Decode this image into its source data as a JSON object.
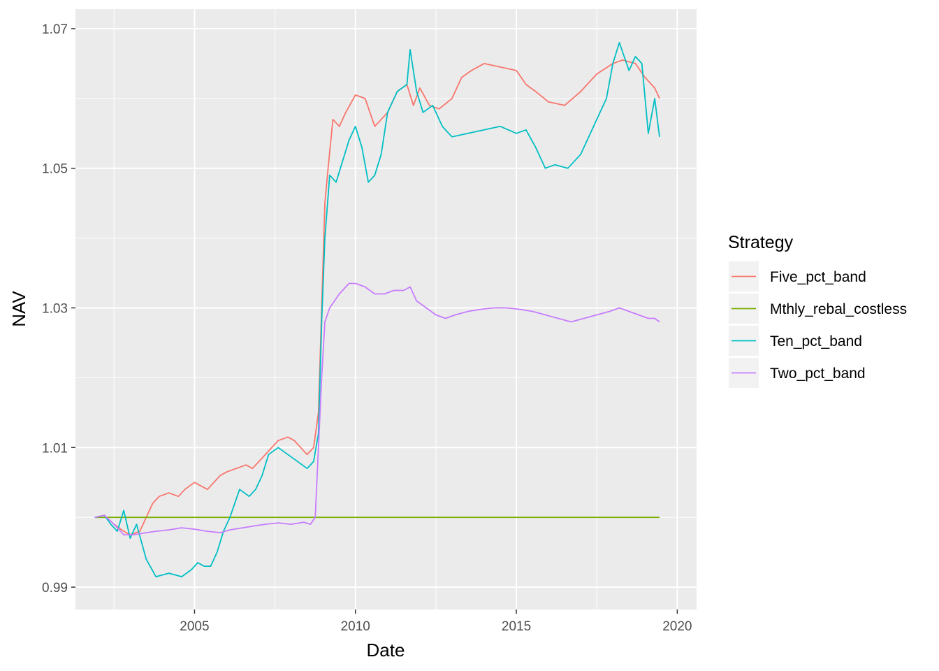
{
  "chart_data": {
    "type": "line",
    "title": "",
    "xlabel": "Date",
    "ylabel": "NAV",
    "xlim": [
      2001.3,
      2020.6
    ],
    "ylim": [
      0.9868,
      1.0728
    ],
    "x_ticks": [
      2005,
      2010,
      2015,
      2020
    ],
    "x_tick_labels": [
      "2005",
      "2010",
      "2015",
      "2020"
    ],
    "y_ticks": [
      0.99,
      1.01,
      1.03,
      1.05,
      1.07
    ],
    "y_tick_labels": [
      "0.99",
      "1.01",
      "1.03",
      "1.05",
      "1.07"
    ],
    "grid": true,
    "legend": {
      "title": "Strategy",
      "placement": "right"
    },
    "series": [
      {
        "name": "Five_pct_band",
        "color": "#F8766D",
        "x": [
          2001.9,
          2002.2,
          2002.5,
          2002.8,
          2003.0,
          2003.3,
          2003.5,
          2003.7,
          2003.9,
          2004.2,
          2004.5,
          2004.7,
          2005.0,
          2005.2,
          2005.4,
          2005.6,
          2005.8,
          2006.0,
          2006.3,
          2006.6,
          2006.8,
          2007.0,
          2007.3,
          2007.6,
          2007.9,
          2008.1,
          2008.3,
          2008.5,
          2008.7,
          2008.85,
          2008.95,
          2009.05,
          2009.15,
          2009.3,
          2009.5,
          2009.7,
          2010.0,
          2010.3,
          2010.6,
          2011.0,
          2011.3,
          2011.6,
          2011.8,
          2012.0,
          2012.3,
          2012.6,
          2013.0,
          2013.3,
          2013.6,
          2014.0,
          2014.5,
          2015.0,
          2015.3,
          2015.6,
          2016.0,
          2016.5,
          2017.0,
          2017.5,
          2018.0,
          2018.3,
          2018.7,
          2019.0,
          2019.3,
          2019.45
        ],
        "values": [
          1.0,
          1.0003,
          0.999,
          0.998,
          0.9975,
          0.998,
          1.0,
          1.002,
          1.003,
          1.0035,
          1.003,
          1.004,
          1.005,
          1.0045,
          1.004,
          1.005,
          1.006,
          1.0065,
          1.007,
          1.0075,
          1.007,
          1.008,
          1.0095,
          1.011,
          1.0115,
          1.011,
          1.01,
          1.009,
          1.01,
          1.015,
          1.03,
          1.045,
          1.05,
          1.057,
          1.056,
          1.058,
          1.0605,
          1.06,
          1.056,
          1.058,
          1.061,
          1.062,
          1.059,
          1.0615,
          1.059,
          1.0585,
          1.06,
          1.063,
          1.064,
          1.065,
          1.0645,
          1.064,
          1.062,
          1.061,
          1.0595,
          1.059,
          1.061,
          1.0635,
          1.065,
          1.0655,
          1.065,
          1.063,
          1.0615,
          1.06
        ]
      },
      {
        "name": "Mthly_rebal_costless",
        "color": "#7CAE00",
        "x": [
          2001.9,
          2019.45
        ],
        "values": [
          1.0,
          1.0
        ]
      },
      {
        "name": "Ten_pct_band",
        "color": "#00BFC4",
        "x": [
          2001.9,
          2002.2,
          2002.4,
          2002.6,
          2002.8,
          2003.0,
          2003.2,
          2003.5,
          2003.8,
          2004.2,
          2004.6,
          2004.9,
          2005.1,
          2005.3,
          2005.5,
          2005.7,
          2005.9,
          2006.1,
          2006.4,
          2006.7,
          2006.9,
          2007.1,
          2007.3,
          2007.6,
          2007.9,
          2008.2,
          2008.5,
          2008.7,
          2008.85,
          2008.95,
          2009.05,
          2009.2,
          2009.4,
          2009.6,
          2009.8,
          2010.0,
          2010.2,
          2010.4,
          2010.6,
          2010.8,
          2011.0,
          2011.3,
          2011.6,
          2011.7,
          2011.9,
          2012.1,
          2012.4,
          2012.7,
          2013.0,
          2013.5,
          2014.0,
          2014.5,
          2015.0,
          2015.3,
          2015.6,
          2015.9,
          2016.2,
          2016.6,
          2017.0,
          2017.4,
          2017.8,
          2018.0,
          2018.2,
          2018.5,
          2018.7,
          2018.9,
          2019.1,
          2019.3,
          2019.45
        ],
        "values": [
          1.0,
          1.0003,
          0.999,
          0.998,
          1.001,
          0.997,
          0.999,
          0.994,
          0.9915,
          0.992,
          0.9915,
          0.9925,
          0.9935,
          0.993,
          0.993,
          0.995,
          0.998,
          1.0,
          1.004,
          1.003,
          1.004,
          1.006,
          1.009,
          1.01,
          1.009,
          1.008,
          1.007,
          1.008,
          1.012,
          1.028,
          1.04,
          1.049,
          1.048,
          1.051,
          1.054,
          1.056,
          1.053,
          1.048,
          1.049,
          1.052,
          1.058,
          1.061,
          1.062,
          1.067,
          1.061,
          1.058,
          1.059,
          1.056,
          1.0545,
          1.055,
          1.0555,
          1.056,
          1.055,
          1.0555,
          1.053,
          1.05,
          1.0505,
          1.05,
          1.052,
          1.056,
          1.06,
          1.065,
          1.068,
          1.064,
          1.066,
          1.065,
          1.055,
          1.06,
          1.0545
        ]
      },
      {
        "name": "Two_pct_band",
        "color": "#C77CFF",
        "x": [
          2001.9,
          2002.2,
          2002.5,
          2002.8,
          2003.1,
          2003.5,
          2003.8,
          2004.2,
          2004.6,
          2005.0,
          2005.4,
          2005.8,
          2006.1,
          2006.5,
          2006.9,
          2007.2,
          2007.6,
          2008.0,
          2008.4,
          2008.6,
          2008.75,
          2008.85,
          2008.95,
          2009.05,
          2009.2,
          2009.5,
          2009.8,
          2010.0,
          2010.3,
          2010.6,
          2010.9,
          2011.2,
          2011.5,
          2011.7,
          2011.9,
          2012.2,
          2012.5,
          2012.8,
          2013.1,
          2013.5,
          2013.9,
          2014.3,
          2014.7,
          2015.1,
          2015.5,
          2015.9,
          2016.3,
          2016.7,
          2017.1,
          2017.5,
          2017.9,
          2018.2,
          2018.5,
          2018.8,
          2019.1,
          2019.3,
          2019.45
        ],
        "values": [
          1.0,
          1.0003,
          0.999,
          0.9975,
          0.9975,
          0.9978,
          0.998,
          0.9982,
          0.9985,
          0.9983,
          0.998,
          0.9978,
          0.9982,
          0.9985,
          0.9988,
          0.999,
          0.9992,
          0.999,
          0.9993,
          0.999,
          1.0,
          1.01,
          1.02,
          1.028,
          1.03,
          1.032,
          1.0335,
          1.0335,
          1.033,
          1.032,
          1.032,
          1.0325,
          1.0325,
          1.033,
          1.031,
          1.03,
          1.029,
          1.0285,
          1.029,
          1.0295,
          1.0298,
          1.03,
          1.03,
          1.0298,
          1.0295,
          1.029,
          1.0285,
          1.028,
          1.0285,
          1.029,
          1.0295,
          1.03,
          1.0295,
          1.029,
          1.0285,
          1.0285,
          1.028
        ]
      }
    ]
  }
}
